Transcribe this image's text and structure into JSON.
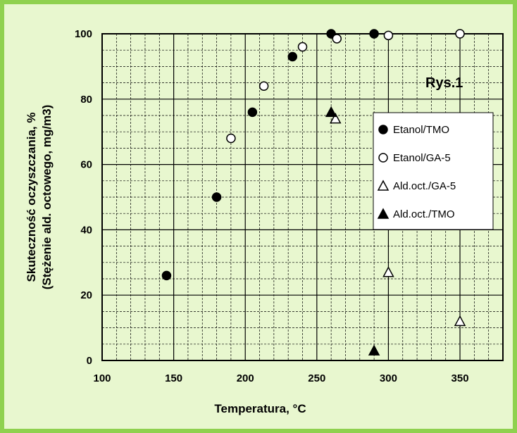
{
  "chart_data": {
    "type": "scatter",
    "title": "Rys.1",
    "xlabel": "Temperatura, °C",
    "ylabel_line1": "Skuteczność oczyszczania, %",
    "ylabel_line2": "(Stężenie ald. octowego, mg/m3)",
    "xlim": [
      100,
      380
    ],
    "ylim": [
      0,
      100
    ],
    "x_ticks": [
      100,
      150,
      200,
      250,
      300,
      350
    ],
    "y_ticks": [
      0,
      20,
      40,
      60,
      80,
      100
    ],
    "grid": true,
    "legend_position": "right-middle",
    "series": [
      {
        "name": "Etanol/TMO",
        "marker": "filled-circle",
        "points": [
          [
            145,
            26
          ],
          [
            180,
            50
          ],
          [
            205,
            76
          ],
          [
            233,
            93
          ],
          [
            260,
            100
          ],
          [
            290,
            100
          ]
        ]
      },
      {
        "name": "Etanol/GA-5",
        "marker": "open-circle",
        "points": [
          [
            190,
            68
          ],
          [
            213,
            84
          ],
          [
            240,
            96
          ],
          [
            264,
            98.5
          ],
          [
            300,
            99.5
          ],
          [
            350,
            100
          ]
        ]
      },
      {
        "name": "Ald.oct./GA-5",
        "marker": "open-triangle",
        "points": [
          [
            263,
            74
          ],
          [
            300,
            27
          ],
          [
            350,
            12
          ]
        ]
      },
      {
        "name": "Ald.oct./TMO",
        "marker": "filled-triangle",
        "points": [
          [
            260,
            76
          ],
          [
            290,
            3
          ]
        ]
      }
    ]
  },
  "colors": {
    "frame": "#8fd14f",
    "background": "#e8f7cf",
    "marker": "#000000"
  }
}
